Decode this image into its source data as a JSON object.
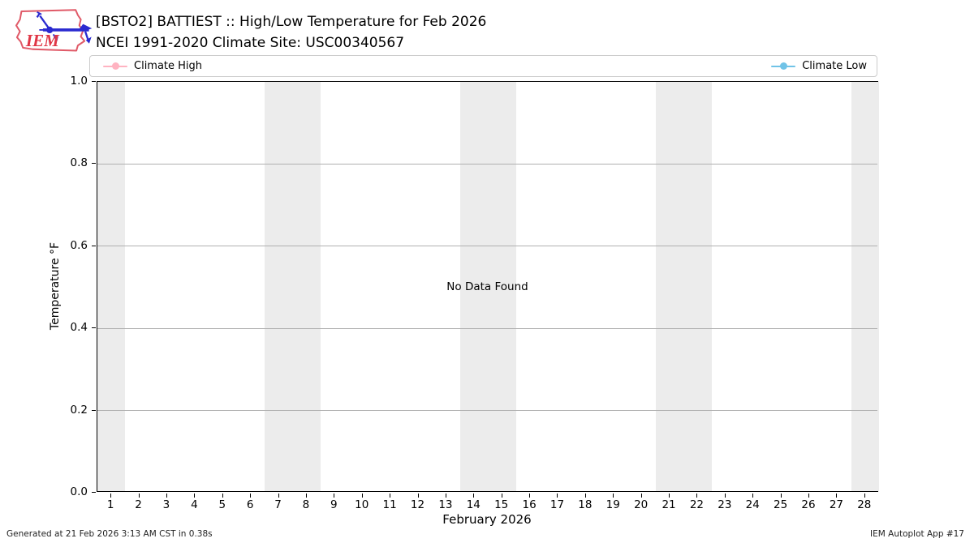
{
  "header": {
    "logo_text": "IEM",
    "title_line1": "[BSTO2] BATTIEST :: High/Low Temperature for Feb 2026",
    "title_line2": "NCEI 1991-2020 Climate Site: USC00340567"
  },
  "legend": {
    "items": [
      {
        "label": "Climate High",
        "color": "#ffb3c1"
      },
      {
        "label": "Climate Low",
        "color": "#70c3e7"
      }
    ]
  },
  "chart_data": {
    "type": "line",
    "title": "[BSTO2] BATTIEST :: High/Low Temperature for Feb 2026",
    "subtitle": "NCEI 1991-2020 Climate Site: USC00340567",
    "xlabel": "February 2026",
    "ylabel": "Temperature °F",
    "xlim": [
      0.5,
      28.5
    ],
    "ylim": [
      0.0,
      1.0
    ],
    "x_ticks": [
      1,
      2,
      3,
      4,
      5,
      6,
      7,
      8,
      9,
      10,
      11,
      12,
      13,
      14,
      15,
      16,
      17,
      18,
      19,
      20,
      21,
      22,
      23,
      24,
      25,
      26,
      27,
      28
    ],
    "y_ticks": [
      0.0,
      0.2,
      0.4,
      0.6,
      0.8,
      1.0
    ],
    "y_tick_labels": [
      "0.0",
      "0.2",
      "0.4",
      "0.6",
      "0.8",
      "1.0"
    ],
    "grid": "horizontal",
    "grid_color": "#b0b0b0",
    "legend_position": "top",
    "series": [
      {
        "name": "Climate High",
        "color": "#ffb3c1",
        "x": [],
        "values": []
      },
      {
        "name": "Climate Low",
        "color": "#70c3e7",
        "x": [],
        "values": []
      }
    ],
    "annotation": "No Data Found",
    "weekend_bands": [
      [
        0.5,
        1.5
      ],
      [
        6.5,
        8.5
      ],
      [
        13.5,
        15.5
      ],
      [
        20.5,
        22.5
      ],
      [
        27.5,
        28.5
      ]
    ],
    "band_color": "#ececec"
  },
  "footer": {
    "left": "Generated at 21 Feb 2026 3:13 AM CST in 0.38s",
    "right": "IEM Autoplot App #17"
  }
}
